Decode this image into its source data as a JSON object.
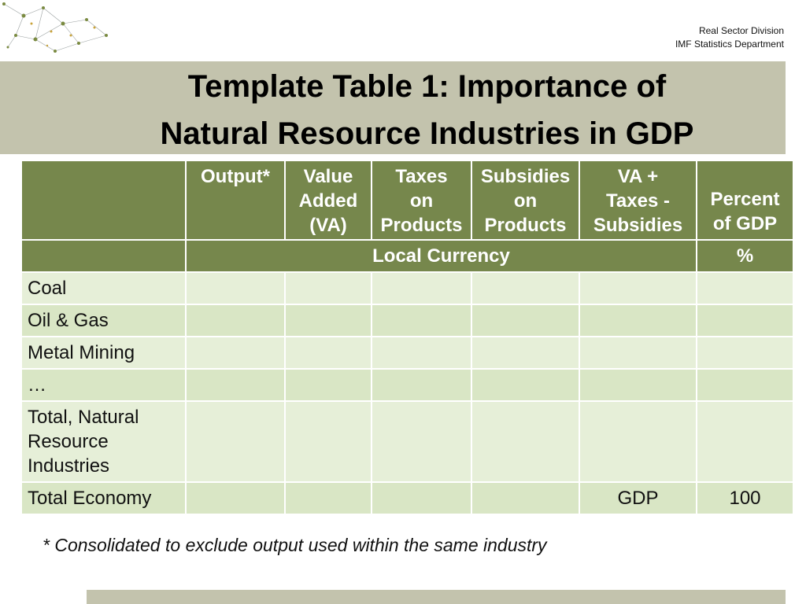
{
  "header": {
    "division": "Real Sector Division",
    "department": "IMF Statistics Department"
  },
  "title": {
    "line1": "Template Table 1: Importance of",
    "line2": "Natural Resource Industries in GDP"
  },
  "table": {
    "columns": [
      {
        "lines": [
          "Output*"
        ]
      },
      {
        "lines": [
          "Value",
          "Added",
          "(VA)"
        ]
      },
      {
        "lines": [
          "Taxes",
          "on",
          "Products"
        ]
      },
      {
        "lines": [
          "Subsidies",
          "on",
          "Products"
        ]
      },
      {
        "lines": [
          "VA +",
          "Taxes -",
          "Subsidies"
        ]
      },
      {
        "lines": [
          "Percent",
          "of GDP"
        ]
      }
    ],
    "unit_local": "Local Currency",
    "unit_percent": "%",
    "rows": [
      {
        "label": [
          "Coal"
        ],
        "cells": [
          "",
          "",
          "",
          "",
          "",
          ""
        ]
      },
      {
        "label": [
          "Oil & Gas"
        ],
        "cells": [
          "",
          "",
          "",
          "",
          "",
          ""
        ]
      },
      {
        "label": [
          "Metal Mining"
        ],
        "cells": [
          "",
          "",
          "",
          "",
          "",
          ""
        ]
      },
      {
        "label": [
          "…"
        ],
        "cells": [
          "",
          "",
          "",
          "",
          "",
          ""
        ]
      },
      {
        "label": [
          "Total, Natural",
          "Resource",
          "Industries"
        ],
        "cells": [
          "",
          "",
          "",
          "",
          "",
          ""
        ]
      },
      {
        "label": [
          "Total Economy"
        ],
        "cells": [
          "",
          "",
          "",
          "",
          "GDP",
          "100"
        ]
      }
    ]
  },
  "footnote": "* Consolidated  to exclude output used within the same industry",
  "colors": {
    "header_green": "#76874c",
    "row_light": "#e6efd8",
    "row_dark": "#d9e6c5",
    "band": "#c3c3ad"
  }
}
